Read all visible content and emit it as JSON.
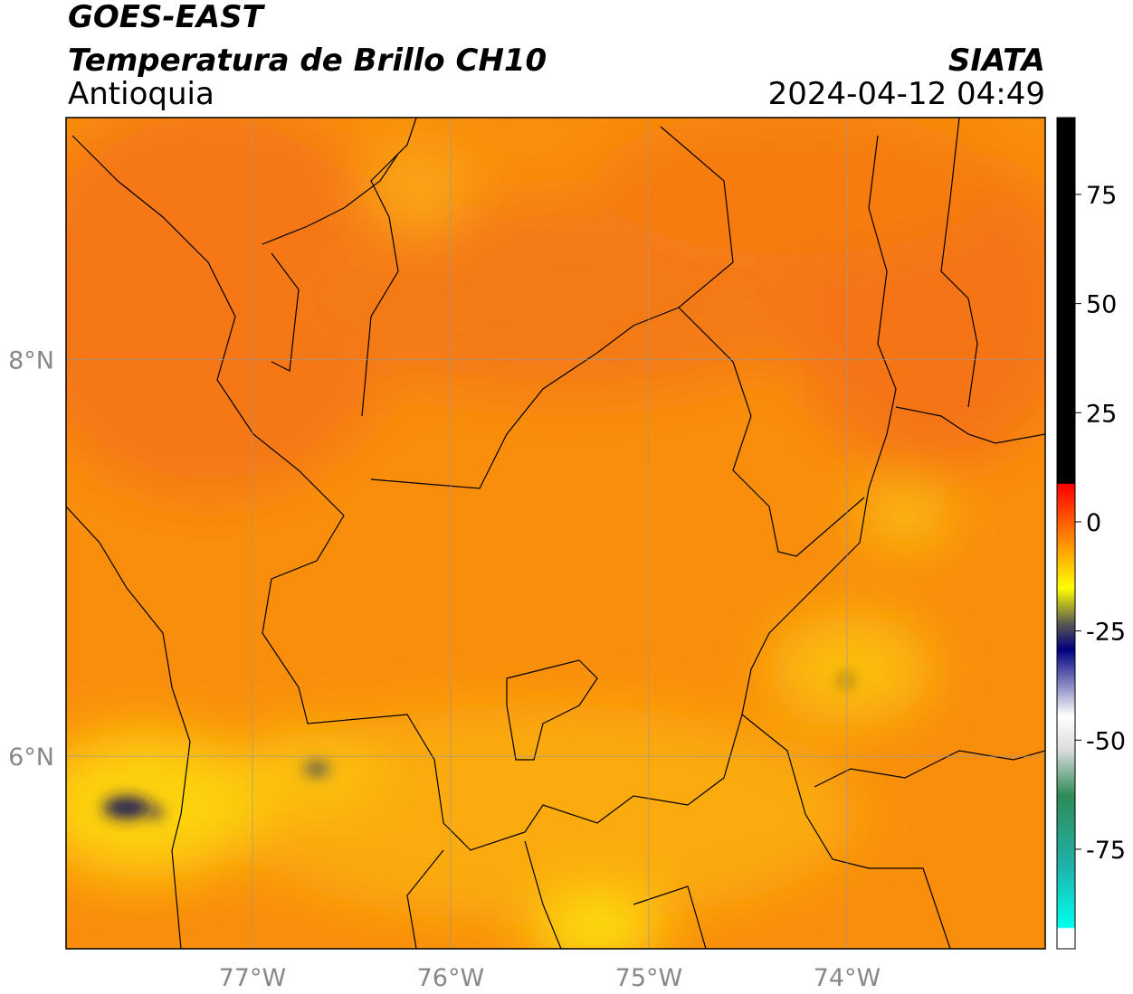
{
  "header": {
    "title": "GOES-EAST",
    "subtitle": "Temperatura de Brillo CH10",
    "region": "Antioquia",
    "source": "SIATA",
    "datetime": "2024-04-12 04:49"
  },
  "map": {
    "lonlim": [
      -77.94,
      -73.0
    ],
    "latlim": [
      5.03,
      9.22
    ],
    "lon_ticks": [
      {
        "value": -77,
        "label": "77°W"
      },
      {
        "value": -76,
        "label": "76°W"
      },
      {
        "value": -75,
        "label": "75°W"
      },
      {
        "value": -74,
        "label": "74°W"
      }
    ],
    "lat_ticks": [
      {
        "value": 8,
        "label": "8°N"
      },
      {
        "value": 6,
        "label": "6°N"
      }
    ]
  },
  "colorbar": {
    "lim": [
      -97.8,
      92.6
    ],
    "ticks": [
      75,
      50,
      25,
      0,
      -25,
      -50,
      -75
    ]
  }
}
